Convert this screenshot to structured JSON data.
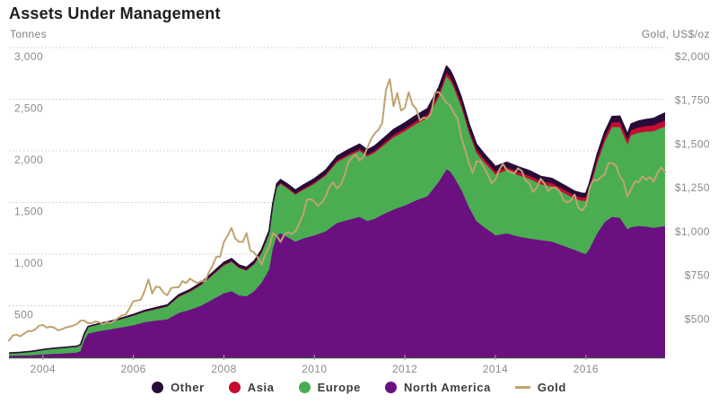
{
  "header": {
    "title": "Assets Under Management",
    "left_unit": "Tonnes",
    "right_unit": "Gold, US$/oz"
  },
  "legend": {
    "items": [
      {
        "label": "Other",
        "color": "#280b38",
        "marker": "dot"
      },
      {
        "label": "Asia",
        "color": "#c60c30",
        "marker": "dot"
      },
      {
        "label": "Europe",
        "color": "#4aad52",
        "marker": "dot"
      },
      {
        "label": "North America",
        "color": "#6b1080",
        "marker": "dot"
      },
      {
        "label": "Gold",
        "color": "#bfa46f",
        "marker": "line"
      }
    ]
  },
  "chart_data": {
    "type": "area",
    "title": "Assets Under Management",
    "ylabel_left": "Tonnes",
    "ylabel_right": "Gold, US$/oz",
    "grid": "dotted-horizontal",
    "legend_position": "bottom-center",
    "x_range": [
      2003.25,
      2017.75
    ],
    "x_axis": {
      "ticks": [
        2004,
        2006,
        2008,
        2010,
        2012,
        2014,
        2016
      ],
      "tick_labels": [
        "2004",
        "2006",
        "2008",
        "2010",
        "2012",
        "2014",
        "2016"
      ]
    },
    "left_axis": {
      "label": "Tonnes",
      "range": [
        0,
        3000
      ],
      "ticks": [
        500,
        1000,
        1500,
        2000,
        2500,
        3000
      ],
      "tick_labels": [
        "500",
        "1,000",
        "1,500",
        "2,000",
        "2,500",
        "3,000"
      ]
    },
    "right_axis": {
      "label": "Gold, US$/oz",
      "range": [
        230,
        2000
      ],
      "ticks": [
        500,
        750,
        1000,
        1250,
        1500,
        1750,
        2000
      ],
      "tick_labels": [
        "$500",
        "$750",
        "$1,000",
        "$1,250",
        "$1,500",
        "$1,750",
        "$2,000"
      ]
    },
    "areas_x": [
      2003.25,
      2003.5,
      2003.75,
      2004,
      2004.25,
      2004.5,
      2004.75,
      2004.83,
      2004.92,
      2005,
      2005.25,
      2005.5,
      2005.75,
      2006,
      2006.25,
      2006.5,
      2006.75,
      2007,
      2007.25,
      2007.5,
      2007.75,
      2008,
      2008.17,
      2008.33,
      2008.5,
      2008.67,
      2008.83,
      2009,
      2009.08,
      2009.17,
      2009.25,
      2009.42,
      2009.58,
      2009.75,
      2009.92,
      2010,
      2010.25,
      2010.5,
      2010.75,
      2011,
      2011.17,
      2011.33,
      2011.5,
      2011.75,
      2012,
      2012.25,
      2012.5,
      2012.75,
      2012.92,
      2013,
      2013.08,
      2013.25,
      2013.42,
      2013.58,
      2013.75,
      2013.92,
      2014,
      2014.25,
      2014.5,
      2014.75,
      2015,
      2015.25,
      2015.5,
      2015.75,
      2015.92,
      2016,
      2016.08,
      2016.25,
      2016.42,
      2016.58,
      2016.75,
      2016.92,
      2017,
      2017.17,
      2017.33,
      2017.5,
      2017.58,
      2017.75
    ],
    "series": [
      {
        "id": "north_america",
        "name": "North America",
        "color": "#6b1080",
        "unit": "Tonnes",
        "values": [
          15,
          17,
          20,
          28,
          33,
          38,
          45,
          60,
          170,
          230,
          255,
          270,
          290,
          310,
          340,
          355,
          368,
          430,
          460,
          500,
          560,
          620,
          640,
          600,
          590,
          640,
          720,
          850,
          1050,
          1180,
          1200,
          1160,
          1120,
          1150,
          1170,
          1180,
          1220,
          1300,
          1330,
          1360,
          1320,
          1340,
          1380,
          1430,
          1470,
          1520,
          1560,
          1700,
          1820,
          1800,
          1750,
          1620,
          1450,
          1320,
          1260,
          1210,
          1180,
          1200,
          1170,
          1150,
          1135,
          1120,
          1080,
          1040,
          1010,
          1000,
          1050,
          1200,
          1310,
          1360,
          1350,
          1240,
          1260,
          1270,
          1265,
          1255,
          1260,
          1270
        ]
      },
      {
        "id": "europe",
        "name": "Europe",
        "color": "#4aad52",
        "unit": "Tonnes",
        "values": [
          25,
          30,
          35,
          45,
          52,
          55,
          58,
          59,
          60,
          62,
          65,
          70,
          80,
          92,
          100,
          110,
          122,
          155,
          175,
          200,
          235,
          270,
          285,
          265,
          250,
          260,
          285,
          340,
          400,
          460,
          480,
          470,
          455,
          470,
          490,
          500,
          540,
          590,
          620,
          640,
          625,
          640,
          660,
          700,
          720,
          740,
          760,
          820,
          900,
          880,
          860,
          800,
          720,
          660,
          630,
          600,
          590,
          610,
          595,
          580,
          540,
          535,
          515,
          495,
          505,
          515,
          560,
          680,
          780,
          870,
          880,
          820,
          890,
          905,
          920,
          935,
          945,
          965
        ]
      },
      {
        "id": "asia",
        "name": "Asia",
        "color": "#c60c30",
        "unit": "Tonnes",
        "values": [
          0,
          0,
          0,
          0,
          0,
          0,
          0,
          0,
          0,
          1,
          1,
          2,
          2,
          3,
          3,
          4,
          4,
          5,
          5,
          6,
          6,
          7,
          7,
          7,
          7,
          8,
          8,
          9,
          9,
          10,
          10,
          11,
          11,
          12,
          13,
          13,
          14,
          15,
          16,
          18,
          18,
          19,
          20,
          23,
          25,
          27,
          29,
          32,
          35,
          35,
          35,
          34,
          32,
          30,
          29,
          28,
          28,
          29,
          29,
          28,
          32,
          32,
          32,
          31,
          31,
          32,
          33,
          38,
          42,
          46,
          48,
          47,
          50,
          52,
          54,
          57,
          58,
          60
        ]
      },
      {
        "id": "other",
        "name": "Other",
        "color": "#280b38",
        "unit": "Tonnes",
        "values": [
          2,
          2,
          3,
          3,
          4,
          4,
          5,
          5,
          5,
          6,
          7,
          8,
          9,
          10,
          11,
          12,
          13,
          15,
          16,
          18,
          20,
          23,
          24,
          23,
          23,
          24,
          25,
          26,
          28,
          30,
          31,
          32,
          33,
          35,
          36,
          37,
          39,
          42,
          44,
          46,
          46,
          47,
          50,
          53,
          55,
          57,
          59,
          62,
          66,
          65,
          64,
          62,
          58,
          55,
          52,
          51,
          50,
          51,
          51,
          50,
          45,
          45,
          44,
          43,
          42,
          42,
          44,
          48,
          52,
          56,
          58,
          56,
          60,
          62,
          64,
          67,
          68,
          72
        ]
      }
    ],
    "line_series": {
      "id": "gold",
      "name": "Gold",
      "color": "#bfa46f",
      "unit": "US$/oz",
      "axis": "right",
      "x_start": 2003.25,
      "x_step": 0.0833333,
      "values": [
        325,
        355,
        360,
        350,
        365,
        380,
        380,
        390,
        410,
        415,
        400,
        405,
        400,
        385,
        390,
        400,
        405,
        410,
        420,
        440,
        440,
        425,
        425,
        435,
        430,
        420,
        430,
        425,
        440,
        455,
        470,
        475,
        510,
        550,
        555,
        560,
        610,
        675,
        595,
        635,
        630,
        600,
        585,
        625,
        630,
        630,
        665,
        655,
        680,
        665,
        655,
        665,
        665,
        715,
        755,
        805,
        805,
        890,
        925,
        970,
        910,
        890,
        890,
        940,
        840,
        830,
        800,
        760,
        820,
        860,
        940,
        925,
        890,
        930,
        945,
        935,
        950,
        995,
        1045,
        1130,
        1135,
        1120,
        1095,
        1115,
        1150,
        1205,
        1230,
        1195,
        1215,
        1270,
        1345,
        1370,
        1390,
        1355,
        1375,
        1425,
        1475,
        1510,
        1530,
        1570,
        1760,
        1820,
        1665,
        1740,
        1640,
        1655,
        1745,
        1675,
        1650,
        1585,
        1600,
        1595,
        1625,
        1745,
        1745,
        1720,
        1685,
        1670,
        1625,
        1595,
        1485,
        1415,
        1340,
        1285,
        1350,
        1350,
        1315,
        1275,
        1225,
        1245,
        1300,
        1335,
        1300,
        1290,
        1280,
        1310,
        1295,
        1240,
        1225,
        1175,
        1200,
        1250,
        1225,
        1180,
        1200,
        1200,
        1180,
        1130,
        1115,
        1125,
        1160,
        1085,
        1070,
        1095,
        1200,
        1245,
        1240,
        1260,
        1275,
        1340,
        1340,
        1325,
        1265,
        1235,
        1150,
        1190,
        1235,
        1230,
        1265,
        1245,
        1260,
        1235,
        1285,
        1315,
        1290
      ]
    },
    "style": {
      "grid_color": "#c9c9c9",
      "axis_line_color": "#474747",
      "x_tick_color": "#9aa4b0",
      "gold_line_width": 2
    }
  }
}
